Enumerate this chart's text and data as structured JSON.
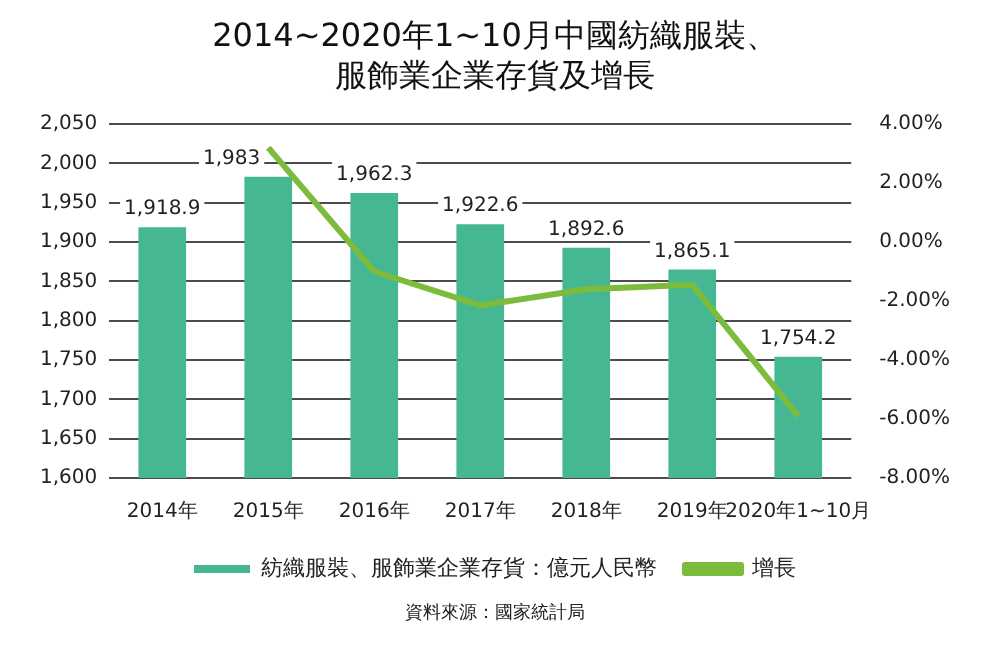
{
  "chart_data": {
    "type": "bar",
    "title": "2014~2020年1~10月中國紡織服裝、服飾業企業存貨及增長",
    "categories": [
      "2014年",
      "2015年",
      "2016年",
      "2017年",
      "2018年",
      "2019年",
      "2020年1~10月"
    ],
    "series": [
      {
        "name": "紡織服裝、服飾業企業存貨：億元人民幣",
        "color": "#45b893",
        "values": [
          1918.9,
          1983,
          1962.3,
          1922.6,
          1892.6,
          1865.1,
          1754.2
        ],
        "value_labels": [
          "1,918.9",
          "1,983",
          "1,962.3",
          "1,922.6",
          "1,892.6",
          "1,865.1",
          "1,754.2"
        ]
      },
      {
        "name": "增長",
        "type": "line",
        "axis": "y2",
        "color": "#7dbb3c",
        "values": [
          null,
          3.2,
          -1.0,
          -2.15,
          -1.6,
          -1.45,
          -5.9
        ]
      }
    ],
    "ylim": [
      1600,
      2050
    ],
    "yticks": [
      {
        "value": 1600,
        "label": "1,600"
      },
      {
        "value": 1650,
        "label": "1,650"
      },
      {
        "value": 1700,
        "label": "1,700"
      },
      {
        "value": 1750,
        "label": "1,750"
      },
      {
        "value": 1800,
        "label": "1,800"
      },
      {
        "value": 1850,
        "label": "1,850"
      },
      {
        "value": 1900,
        "label": "1,900"
      },
      {
        "value": 1950,
        "label": "1,950"
      },
      {
        "value": 2000,
        "label": "2,000"
      },
      {
        "value": 2050,
        "label": "2,050"
      }
    ],
    "y2lim": [
      -8,
      4
    ],
    "y2ticks": [
      {
        "value": -8,
        "label": "-8.00%"
      },
      {
        "value": -6,
        "label": "-6.00%"
      },
      {
        "value": -4,
        "label": "-4.00%"
      },
      {
        "value": -2,
        "label": "-2.00%"
      },
      {
        "value": 0,
        "label": "0.00%"
      },
      {
        "value": 2,
        "label": "2.00%"
      },
      {
        "value": 4,
        "label": "4.00%"
      }
    ],
    "grid": "y",
    "legend": "bottom",
    "marker": "none",
    "line_style": "solid",
    "annotations": [
      "資料來源：國家統計局"
    ]
  }
}
